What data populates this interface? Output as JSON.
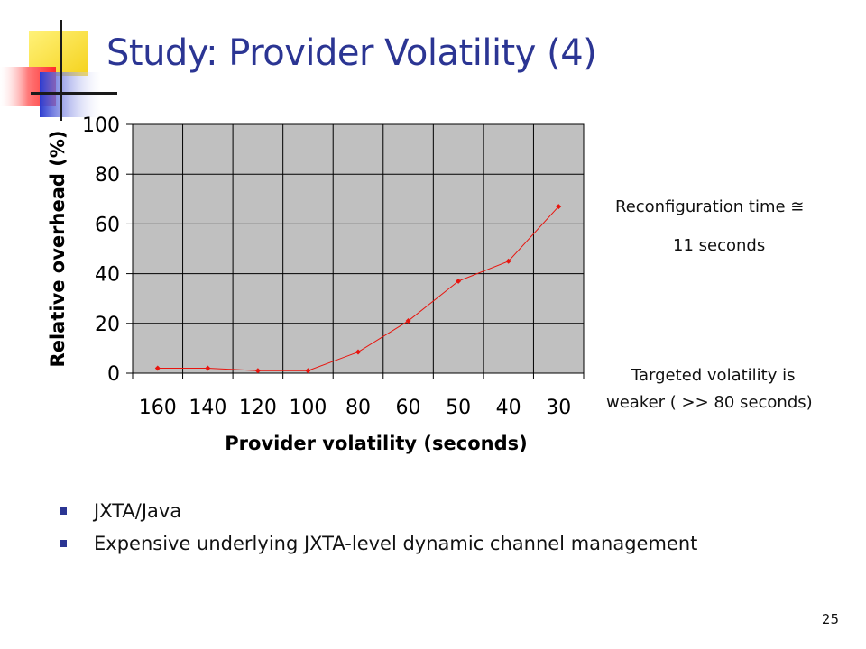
{
  "slide": {
    "title": "Study: Provider Volatility (4)",
    "page_number": "25",
    "accent_color": "#2b3593"
  },
  "notes": {
    "reconfig_line1": "Reconfiguration time ≅",
    "reconfig_line2": "11 seconds",
    "targeted_line1": "Targeted volatility is",
    "targeted_line2": "weaker ( >> 80 seconds)"
  },
  "bullets": [
    "JXTA/Java",
    "Expensive underlying JXTA-level dynamic channel management"
  ],
  "chart_data": {
    "type": "line",
    "title": "",
    "xlabel": "Provider volatility (seconds)",
    "ylabel": "Relative overhead (%)",
    "categories": [
      "160",
      "140",
      "120",
      "100",
      "80",
      "60",
      "50",
      "40",
      "30"
    ],
    "series": [
      {
        "values": [
          2,
          2,
          1,
          1,
          8.5,
          21,
          37,
          45,
          67
        ],
        "color": "#e8150e"
      }
    ],
    "ylim": [
      0,
      100
    ],
    "yticks": [
      "0",
      "20",
      "40",
      "60",
      "80",
      "100"
    ],
    "grid": true,
    "plot_background": "#c0c0c0",
    "legend": "none"
  }
}
